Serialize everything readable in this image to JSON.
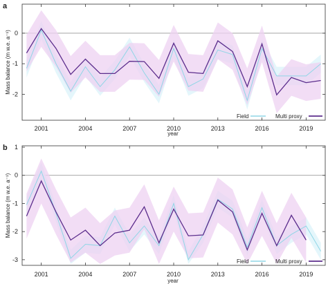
{
  "colors": {
    "field_line": "#8fd6e6",
    "field_band": "#dff4fa",
    "proxy_line": "#5b2d8c",
    "proxy_band": "#eed2f2",
    "zero_line": "#888888",
    "frame": "#333333"
  },
  "chart_data": [
    {
      "type": "line",
      "panel_letter": "a",
      "xlabel": "year",
      "ylabel": "Mass balance (m w.e. a⁻¹)",
      "xlim": [
        1999.7,
        2020.3
      ],
      "ylim": [
        -2.85,
        0.95
      ],
      "xticks": [
        2001,
        2004,
        2007,
        2010,
        2013,
        2016,
        2019
      ],
      "yticks": [
        0,
        -1,
        -2
      ],
      "legend_position": "bottom-right",
      "x": [
        2000,
        2001,
        2002,
        2003,
        2004,
        2005,
        2006,
        2007,
        2008,
        2009,
        2010,
        2011,
        2012,
        2013,
        2014,
        2015,
        2016,
        2017,
        2018,
        2019,
        2020
      ],
      "series": [
        {
          "name": "Field",
          "values": [
            -1.15,
            0.1,
            -1.0,
            -1.9,
            -1.1,
            -1.75,
            -1.2,
            -0.45,
            -1.3,
            -2.0,
            -0.5,
            -1.75,
            -1.5,
            -0.55,
            -0.7,
            -2.2,
            -0.5,
            -1.4,
            -1.4,
            -1.4,
            -1.0
          ],
          "band_low": [
            -1.45,
            -0.2,
            -1.3,
            -2.2,
            -1.4,
            -2.05,
            -1.5,
            -0.75,
            -1.6,
            -2.3,
            -0.8,
            -2.05,
            -1.8,
            -0.85,
            -1.0,
            -2.5,
            -0.8,
            -1.7,
            -1.7,
            -1.7,
            -1.3
          ],
          "band_high": [
            -0.85,
            0.4,
            -0.7,
            -1.6,
            -0.8,
            -1.45,
            -0.9,
            -0.15,
            -1.0,
            -1.7,
            -0.2,
            -1.45,
            -1.2,
            -0.25,
            -0.4,
            -1.9,
            -0.2,
            -1.1,
            -1.1,
            -1.1,
            -0.7
          ]
        },
        {
          "name": "Multi proxy",
          "values": [
            -0.65,
            0.15,
            -0.5,
            -1.35,
            -0.85,
            -1.32,
            -1.32,
            -0.92,
            -0.93,
            -1.48,
            -0.33,
            -1.28,
            -1.32,
            -0.25,
            -0.6,
            -1.75,
            -0.35,
            -2.02,
            -1.45,
            -1.62,
            -1.55
          ],
          "band_low": [
            -1.25,
            -0.45,
            -1.1,
            -1.95,
            -1.45,
            -1.92,
            -1.92,
            -1.52,
            -1.53,
            -2.08,
            -0.93,
            -1.88,
            -1.92,
            -0.85,
            -1.2,
            -2.35,
            -0.95,
            -2.62,
            -2.05,
            -2.22,
            -2.15
          ],
          "band_high": [
            -0.05,
            0.75,
            0.1,
            -0.75,
            -0.25,
            -0.72,
            -0.72,
            -0.32,
            -0.33,
            -0.88,
            0.27,
            -0.68,
            -0.72,
            0.35,
            0.0,
            -1.15,
            0.25,
            -1.42,
            -0.85,
            -1.02,
            -0.95
          ]
        }
      ]
    },
    {
      "type": "line",
      "panel_letter": "b",
      "xlabel": "year",
      "ylabel": "Mass balance (m w.e. a⁻¹)",
      "xlim": [
        1999.7,
        2020.3
      ],
      "ylim": [
        -3.2,
        1.05
      ],
      "xticks": [
        2001,
        2004,
        2007,
        2010,
        2013,
        2016,
        2019
      ],
      "yticks": [
        1,
        0,
        -1,
        -2,
        -3
      ],
      "legend_position": "bottom-right",
      "x": [
        2000,
        2001,
        2002,
        2003,
        2004,
        2005,
        2006,
        2007,
        2008,
        2009,
        2010,
        2011,
        2012,
        2013,
        2014,
        2015,
        2016,
        2017,
        2018,
        2019,
        2020
      ],
      "series": [
        {
          "name": "Field",
          "values": [
            -1.05,
            0.15,
            -1.35,
            -2.95,
            -2.45,
            -2.5,
            -1.45,
            -2.4,
            -1.8,
            -2.5,
            -1.0,
            -3.0,
            -2.1,
            -0.85,
            -1.2,
            -2.55,
            -1.15,
            -2.5,
            -2.1,
            -1.8,
            -2.7
          ],
          "band_low": [
            -1.35,
            -0.15,
            -1.65,
            -3.15,
            -2.75,
            -2.8,
            -1.75,
            -2.7,
            -2.1,
            -2.8,
            -1.3,
            -3.15,
            -2.4,
            -1.15,
            -1.5,
            -2.85,
            -1.45,
            -2.8,
            -2.4,
            -2.1,
            -3.0
          ],
          "band_high": [
            -0.75,
            0.45,
            -1.05,
            -2.65,
            -2.15,
            -2.2,
            -1.15,
            -2.1,
            -1.5,
            -2.2,
            -0.7,
            -2.7,
            -1.8,
            -0.55,
            -0.9,
            -2.25,
            -0.85,
            -2.2,
            -1.8,
            -1.5,
            -2.4
          ]
        },
        {
          "name": "Multi proxy",
          "values": [
            -1.45,
            -0.2,
            -1.3,
            -2.3,
            -1.95,
            -2.5,
            -2.05,
            -1.95,
            -1.12,
            -2.4,
            -1.2,
            -2.15,
            -2.12,
            -0.88,
            -1.3,
            -2.65,
            -1.35,
            -2.5,
            -1.42,
            -2.3,
            null
          ],
          "band_low": [
            -2.25,
            -1.0,
            -2.1,
            -3.1,
            -2.75,
            -3.15,
            -2.85,
            -2.75,
            -1.92,
            -3.15,
            -2.0,
            -2.95,
            -2.92,
            -1.68,
            -2.1,
            -3.15,
            -2.15,
            -3.15,
            -2.22,
            -3.1,
            null
          ],
          "band_high": [
            -0.65,
            0.6,
            -0.5,
            -1.5,
            -1.15,
            -1.7,
            -1.25,
            -1.15,
            -0.32,
            -1.6,
            -0.4,
            -1.35,
            -1.32,
            -0.08,
            -0.5,
            -1.85,
            -0.55,
            -1.7,
            -0.62,
            -1.5,
            null
          ]
        }
      ]
    }
  ]
}
